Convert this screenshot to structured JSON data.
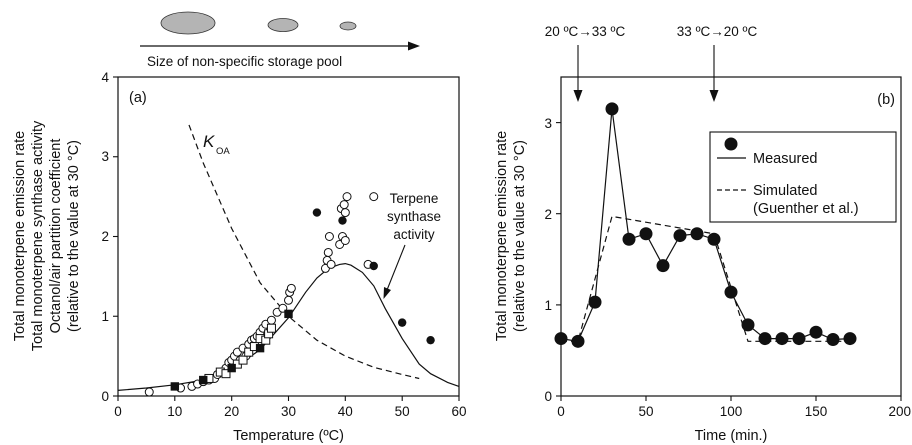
{
  "chart_data": [
    {
      "panel": "(a)",
      "type": "scatter",
      "header": {
        "pool_caption": "Size of non-specific storage pool"
      },
      "xlabel": "Temperature (ºC)",
      "ylabel_lines": [
        "Total monoterpene emission rate",
        "Total monoterpene synthase activity",
        "Octanol/air partition coefficient",
        "(relative to the value at 30 °C)"
      ],
      "xlim": [
        0,
        60
      ],
      "ylim": [
        0,
        4
      ],
      "xticks": [
        "0",
        "10",
        "20",
        "30",
        "40",
        "50",
        "60"
      ],
      "yticks": [
        "0",
        "1",
        "2",
        "3",
        "4"
      ],
      "koa_label": "K",
      "koa_sub": "OA",
      "annotation_lines": [
        "Terpene",
        "synthase",
        "activity"
      ],
      "series": [
        {
          "marker": "open-circle",
          "points": [
            [
              5.5,
              0.05
            ],
            [
              11,
              0.1
            ],
            [
              13,
              0.12
            ],
            [
              14,
              0.15
            ],
            [
              15,
              0.18
            ],
            [
              16,
              0.2
            ],
            [
              17,
              0.22
            ],
            [
              17.5,
              0.27
            ],
            [
              18,
              0.3
            ],
            [
              19,
              0.35
            ],
            [
              19.5,
              0.42
            ],
            [
              20,
              0.45
            ],
            [
              20.5,
              0.5
            ],
            [
              21,
              0.55
            ],
            [
              21.5,
              0.45
            ],
            [
              22,
              0.6
            ],
            [
              22.5,
              0.5
            ],
            [
              23,
              0.65
            ],
            [
              23.5,
              0.7
            ],
            [
              24,
              0.72
            ],
            [
              24.5,
              0.75
            ],
            [
              25,
              0.8
            ],
            [
              25.5,
              0.85
            ],
            [
              26,
              0.9
            ],
            [
              27,
              0.95
            ],
            [
              28,
              1.05
            ],
            [
              29,
              1.1
            ],
            [
              30,
              1.2
            ],
            [
              30.2,
              1.3
            ],
            [
              30.5,
              1.35
            ],
            [
              36.5,
              1.6
            ],
            [
              36.8,
              1.7
            ],
            [
              37,
              1.8
            ],
            [
              37.5,
              1.65
            ],
            [
              37.2,
              2.0
            ],
            [
              39,
              1.9
            ],
            [
              39.5,
              2.0
            ],
            [
              40,
              1.95
            ],
            [
              39.3,
              2.35
            ],
            [
              40,
              2.3
            ],
            [
              39.8,
              2.4
            ],
            [
              40.3,
              2.5
            ],
            [
              45,
              2.5
            ],
            [
              44,
              1.65
            ]
          ]
        },
        {
          "marker": "open-square",
          "points": [
            [
              16,
              0.22
            ],
            [
              18,
              0.3
            ],
            [
              19,
              0.28
            ],
            [
              21,
              0.4
            ],
            [
              22,
              0.45
            ],
            [
              23,
              0.55
            ],
            [
              24,
              0.62
            ],
            [
              25,
              0.72
            ],
            [
              26,
              0.7
            ],
            [
              26.5,
              0.78
            ],
            [
              27,
              0.85
            ]
          ]
        },
        {
          "marker": "filled-square",
          "points": [
            [
              10,
              0.12
            ],
            [
              15,
              0.2
            ],
            [
              20,
              0.35
            ],
            [
              25,
              0.6
            ],
            [
              30,
              1.03
            ]
          ]
        },
        {
          "marker": "filled-circle",
          "points": [
            [
              35,
              2.3
            ],
            [
              39.5,
              2.2
            ],
            [
              45,
              1.63
            ],
            [
              50,
              0.92
            ],
            [
              55,
              0.7
            ]
          ]
        }
      ],
      "curves": [
        {
          "label": "Terpene synthase activity",
          "style": "solid",
          "points": [
            [
              0,
              0.07
            ],
            [
              5,
              0.1
            ],
            [
              10,
              0.14
            ],
            [
              15,
              0.2
            ],
            [
              20,
              0.33
            ],
            [
              25,
              0.58
            ],
            [
              30,
              0.98
            ],
            [
              33,
              1.3
            ],
            [
              35,
              1.48
            ],
            [
              37,
              1.6
            ],
            [
              39,
              1.65
            ],
            [
              40,
              1.66
            ],
            [
              41,
              1.64
            ],
            [
              43,
              1.55
            ],
            [
              45,
              1.38
            ],
            [
              47,
              1.1
            ],
            [
              50,
              0.72
            ],
            [
              53,
              0.4
            ],
            [
              55,
              0.28
            ],
            [
              58,
              0.17
            ],
            [
              60,
              0.12
            ]
          ]
        },
        {
          "label": "K_OA",
          "style": "dashed",
          "points": [
            [
              12.5,
              3.4
            ],
            [
              15,
              2.92
            ],
            [
              20,
              2.1
            ],
            [
              25,
              1.42
            ],
            [
              30,
              1.0
            ],
            [
              35,
              0.7
            ],
            [
              40,
              0.5
            ],
            [
              45,
              0.36
            ],
            [
              50,
              0.27
            ],
            [
              53,
              0.22
            ]
          ]
        }
      ]
    },
    {
      "panel": "(b)",
      "type": "line",
      "xlabel": "Time (min.)",
      "ylabel_lines": [
        "Total monoterpene emission rate",
        "(relative to the value at 30 °C)"
      ],
      "xlim": [
        0,
        200
      ],
      "ylim": [
        0,
        3.5
      ],
      "xticks": [
        "0",
        "50",
        "100",
        "150",
        "200"
      ],
      "yticks": [
        "0",
        "1",
        "2",
        "3"
      ],
      "events": [
        {
          "label": "20 ºC→33 ºC",
          "x": 10
        },
        {
          "label": "33 ºC→20 ºC",
          "x": 90
        }
      ],
      "legend": {
        "position": "top-right",
        "measured": "Measured",
        "simulated": "Simulated",
        "simulated_note": "(Guenther et al.)"
      },
      "series": [
        {
          "name": "Measured",
          "x": [
            0,
            10,
            20,
            30,
            40,
            50,
            60,
            70,
            80,
            90,
            100,
            110,
            120,
            130,
            140,
            150,
            160,
            170
          ],
          "values": [
            0.63,
            0.6,
            1.03,
            3.15,
            1.72,
            1.78,
            1.43,
            1.76,
            1.78,
            1.72,
            1.14,
            0.78,
            0.63,
            0.63,
            0.63,
            0.7,
            0.62,
            0.63
          ]
        },
        {
          "name": "Simulated",
          "x": [
            0,
            10,
            30,
            90,
            110,
            170
          ],
          "values": [
            0.6,
            0.6,
            1.97,
            1.78,
            0.6,
            0.6
          ]
        }
      ]
    }
  ]
}
